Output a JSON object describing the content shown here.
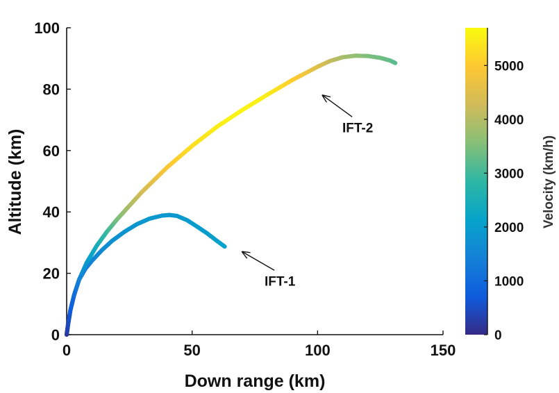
{
  "chart_data": {
    "type": "line",
    "xlabel": "Down range (km)",
    "ylabel": "Altitude (km)",
    "xlim": [
      0,
      150
    ],
    "ylim": [
      0,
      100
    ],
    "xticks": [
      "0",
      "50",
      "100",
      "150"
    ],
    "yticks": [
      "0",
      "20",
      "40",
      "60",
      "80",
      "100"
    ],
    "grid": false,
    "colorbar": {
      "label": "Velocity (km/h)",
      "range": [
        0,
        5700
      ],
      "ticks": [
        "0",
        "1000",
        "2000",
        "3000",
        "4000",
        "5000"
      ],
      "colormap": "parula"
    },
    "series": [
      {
        "x": [
          0,
          0.5,
          1.5,
          3,
          5,
          7.5,
          10,
          14,
          18,
          23,
          28,
          33,
          38,
          41,
          44,
          48,
          52,
          56,
          60,
          63
        ],
        "y": [
          0,
          3,
          8,
          13,
          18,
          21.5,
          24,
          27.5,
          30.5,
          33.5,
          36,
          37.8,
          38.8,
          39,
          38.7,
          37.3,
          35.2,
          33,
          30.5,
          28.7
        ],
        "color_values": [
          200,
          400,
          700,
          900,
          1100,
          1300,
          1450,
          1600,
          1700,
          1800,
          1850,
          1900,
          1900,
          1900,
          1900,
          1950,
          2000,
          2000,
          2050,
          2100
        ]
      },
      {
        "x": [
          0,
          0.5,
          1.5,
          3,
          5,
          8,
          12,
          16,
          20,
          25,
          30,
          35,
          40,
          50,
          60,
          70,
          80,
          90,
          100,
          105,
          110,
          115,
          120,
          125,
          129,
          131
        ],
        "y": [
          0,
          3,
          8,
          13,
          18,
          23.5,
          29,
          33.5,
          37.5,
          42,
          46.5,
          50.5,
          54.5,
          61.5,
          67.8,
          73.2,
          78.2,
          83,
          87.3,
          89.2,
          90.4,
          90.9,
          90.8,
          90.2,
          89.3,
          88.5
        ],
        "color_values": [
          200,
          400,
          700,
          1000,
          1400,
          1900,
          2400,
          2900,
          3400,
          3900,
          4300,
          4600,
          4900,
          5300,
          5500,
          5600,
          5500,
          5100,
          4500,
          4200,
          3900,
          3700,
          3500,
          3400,
          3300,
          3200
        ]
      }
    ],
    "annotations": [
      {
        "text": "IFT-2",
        "x": 116,
        "y": 66,
        "arrow_to": [
          102,
          78
        ]
      },
      {
        "text": "IFT-1",
        "x": 85,
        "y": 16,
        "arrow_to": [
          70,
          27
        ]
      }
    ]
  }
}
